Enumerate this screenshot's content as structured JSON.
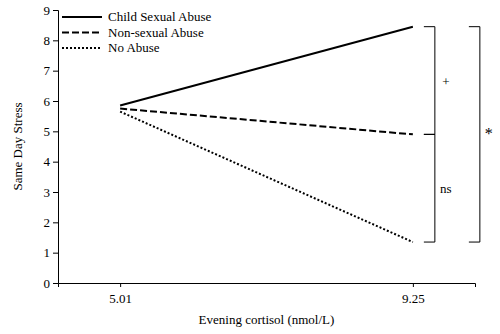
{
  "chart_data": {
    "type": "line",
    "x_label": "Evening cortisol (nmol/L)",
    "y_label": "Same Day Stress",
    "x": [
      5.01,
      9.25
    ],
    "xlim": [
      4.11,
      10.15
    ],
    "xticks": [
      5.01,
      9.25
    ],
    "ylim": [
      0,
      9
    ],
    "yticks": [
      0,
      1,
      2,
      3,
      4,
      5,
      6,
      7,
      8,
      9
    ],
    "grid": false,
    "legend": "upper left",
    "series": [
      {
        "name": "Child Sexual Abuse",
        "color": "#000000",
        "line_style": "solid",
        "values": [
          5.85,
          8.45
        ]
      },
      {
        "name": "Non-sexual Abuse",
        "color": "#000000",
        "line_style": "dashed",
        "values": [
          5.75,
          4.9
        ]
      },
      {
        "name": "No Abuse",
        "color": "#000000",
        "line_style": "dotted",
        "values": [
          5.65,
          1.35
        ]
      }
    ],
    "annotations": [
      {
        "text": "+",
        "from": 8.45,
        "to": 4.9
      },
      {
        "text": "ns",
        "from": 4.9,
        "to": 1.35
      },
      {
        "text": "*",
        "from": 8.45,
        "to": 1.35
      }
    ]
  }
}
